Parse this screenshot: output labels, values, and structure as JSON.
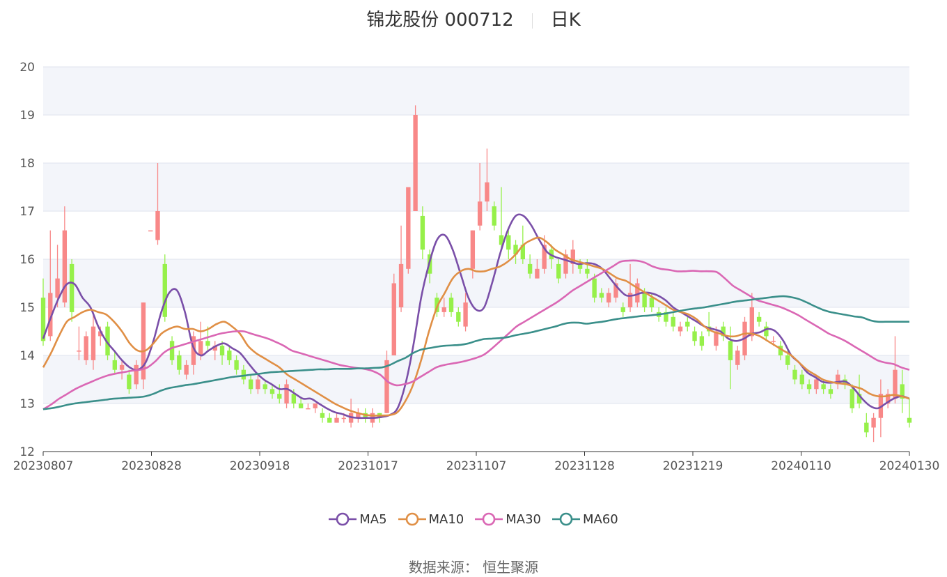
{
  "title": {
    "stock": "锦龙股份 000712",
    "period": "日K"
  },
  "source": "数据来源： 恒生聚源",
  "colors": {
    "up": "#f88888",
    "down": "#96f04a",
    "grid": "#dfe3ee",
    "band": "#f3f5fa",
    "MA5": "#7a4fa8",
    "MA10": "#e08f45",
    "MA30": "#da67b4",
    "MA60": "#3a8f8a"
  },
  "chart_data": {
    "type": "candlestick",
    "ylim": [
      12,
      20
    ],
    "yticks": [
      12,
      13,
      14,
      15,
      16,
      17,
      18,
      19,
      20
    ],
    "xticks": [
      "20230807",
      "20230828",
      "20230918",
      "20231017",
      "20231107",
      "20231128",
      "20231219",
      "20240110",
      "20240130"
    ],
    "legend": [
      "MA5",
      "MA10",
      "MA30",
      "MA60"
    ],
    "candles": [
      {
        "o": 15.2,
        "c": 14.3,
        "h": 15.6,
        "l": 14.2
      },
      {
        "o": 14.4,
        "c": 15.3,
        "h": 16.6,
        "l": 14.3
      },
      {
        "o": 15.2,
        "c": 15.6,
        "h": 16.3,
        "l": 15.0
      },
      {
        "o": 15.1,
        "c": 16.6,
        "h": 17.1,
        "l": 15.0
      },
      {
        "o": 15.9,
        "c": 14.9,
        "h": 16.0,
        "l": 14.7
      },
      {
        "o": 14.1,
        "c": 14.1,
        "h": 14.6,
        "l": 13.9
      },
      {
        "o": 13.9,
        "c": 14.4,
        "h": 14.5,
        "l": 13.8
      },
      {
        "o": 13.9,
        "c": 14.6,
        "h": 14.9,
        "l": 13.7
      },
      {
        "o": 14.4,
        "c": 14.5,
        "h": 14.6,
        "l": 14.2
      },
      {
        "o": 14.6,
        "c": 14.0,
        "h": 14.7,
        "l": 13.9
      },
      {
        "o": 13.9,
        "c": 13.7,
        "h": 14.1,
        "l": 13.6
      },
      {
        "o": 13.7,
        "c": 13.8,
        "h": 13.9,
        "l": 13.5
      },
      {
        "o": 13.6,
        "c": 13.3,
        "h": 13.7,
        "l": 13.2
      },
      {
        "o": 13.4,
        "c": 13.8,
        "h": 13.9,
        "l": 13.3
      },
      {
        "o": 13.5,
        "c": 15.1,
        "h": 15.1,
        "l": 13.3
      },
      {
        "o": 16.6,
        "c": 16.6,
        "h": 16.6,
        "l": 16.6
      },
      {
        "o": 16.4,
        "c": 17.0,
        "h": 18.0,
        "l": 16.3
      },
      {
        "o": 15.9,
        "c": 14.8,
        "h": 16.1,
        "l": 14.7
      },
      {
        "o": 14.3,
        "c": 13.9,
        "h": 14.4,
        "l": 13.8
      },
      {
        "o": 14.0,
        "c": 13.7,
        "h": 14.1,
        "l": 13.6
      },
      {
        "o": 13.6,
        "c": 13.8,
        "h": 13.9,
        "l": 13.5
      },
      {
        "o": 13.8,
        "c": 14.4,
        "h": 14.5,
        "l": 13.6
      },
      {
        "o": 14.0,
        "c": 14.3,
        "h": 14.7,
        "l": 13.9
      },
      {
        "o": 14.3,
        "c": 14.2,
        "h": 14.6,
        "l": 14.1
      },
      {
        "o": 14.1,
        "c": 14.2,
        "h": 14.3,
        "l": 13.9
      },
      {
        "o": 14.2,
        "c": 14.0,
        "h": 14.3,
        "l": 13.8
      },
      {
        "o": 14.1,
        "c": 13.9,
        "h": 14.2,
        "l": 13.8
      },
      {
        "o": 13.9,
        "c": 13.7,
        "h": 14.0,
        "l": 13.6
      },
      {
        "o": 13.7,
        "c": 13.5,
        "h": 13.8,
        "l": 13.4
      },
      {
        "o": 13.5,
        "c": 13.3,
        "h": 13.6,
        "l": 13.2
      },
      {
        "o": 13.3,
        "c": 13.5,
        "h": 13.6,
        "l": 13.2
      },
      {
        "o": 13.4,
        "c": 13.3,
        "h": 13.5,
        "l": 13.2
      },
      {
        "o": 13.3,
        "c": 13.2,
        "h": 13.4,
        "l": 13.1
      },
      {
        "o": 13.2,
        "c": 13.1,
        "h": 13.4,
        "l": 13.0
      },
      {
        "o": 13.0,
        "c": 13.4,
        "h": 13.5,
        "l": 12.9
      },
      {
        "o": 13.2,
        "c": 13.0,
        "h": 13.3,
        "l": 12.9
      },
      {
        "o": 13.0,
        "c": 12.9,
        "h": 13.1,
        "l": 12.9
      },
      {
        "o": 12.9,
        "c": 12.9,
        "h": 13.0,
        "l": 12.9
      },
      {
        "o": 12.9,
        "c": 13.0,
        "h": 13.0,
        "l": 12.8
      },
      {
        "o": 12.8,
        "c": 12.7,
        "h": 12.9,
        "l": 12.6
      },
      {
        "o": 12.7,
        "c": 12.6,
        "h": 12.8,
        "l": 12.6
      },
      {
        "o": 12.6,
        "c": 12.7,
        "h": 12.8,
        "l": 12.6
      },
      {
        "o": 12.7,
        "c": 12.7,
        "h": 12.8,
        "l": 12.6
      },
      {
        "o": 12.6,
        "c": 12.8,
        "h": 13.1,
        "l": 12.5
      },
      {
        "o": 12.7,
        "c": 12.8,
        "h": 12.9,
        "l": 12.6
      },
      {
        "o": 12.8,
        "c": 12.7,
        "h": 12.9,
        "l": 12.6
      },
      {
        "o": 12.6,
        "c": 12.8,
        "h": 12.9,
        "l": 12.5
      },
      {
        "o": 12.8,
        "c": 12.7,
        "h": 12.8,
        "l": 12.6
      },
      {
        "o": 12.8,
        "c": 13.9,
        "h": 14.1,
        "l": 12.8
      },
      {
        "o": 14.0,
        "c": 15.5,
        "h": 15.7,
        "l": 14.0
      },
      {
        "o": 15.0,
        "c": 15.9,
        "h": 16.7,
        "l": 14.9
      },
      {
        "o": 15.8,
        "c": 17.5,
        "h": 17.5,
        "l": 15.7
      },
      {
        "o": 17.0,
        "c": 19.0,
        "h": 19.2,
        "l": 17.0
      },
      {
        "o": 16.9,
        "c": 16.2,
        "h": 17.1,
        "l": 16.0
      },
      {
        "o": 16.1,
        "c": 15.7,
        "h": 16.2,
        "l": 15.5
      },
      {
        "o": 15.2,
        "c": 14.9,
        "h": 15.3,
        "l": 14.8
      },
      {
        "o": 14.9,
        "c": 15.0,
        "h": 15.2,
        "l": 14.8
      },
      {
        "o": 15.2,
        "c": 14.9,
        "h": 15.3,
        "l": 14.8
      },
      {
        "o": 14.9,
        "c": 14.7,
        "h": 15.0,
        "l": 14.6
      },
      {
        "o": 14.6,
        "c": 15.1,
        "h": 15.3,
        "l": 14.5
      },
      {
        "o": 15.8,
        "c": 16.6,
        "h": 16.6,
        "l": 15.6
      },
      {
        "o": 16.7,
        "c": 17.2,
        "h": 18.0,
        "l": 16.6
      },
      {
        "o": 17.2,
        "c": 17.6,
        "h": 18.3,
        "l": 17.0
      },
      {
        "o": 17.1,
        "c": 16.7,
        "h": 17.2,
        "l": 16.6
      },
      {
        "o": 16.5,
        "c": 16.3,
        "h": 17.5,
        "l": 16.2
      },
      {
        "o": 16.5,
        "c": 16.2,
        "h": 16.6,
        "l": 16.0
      },
      {
        "o": 16.3,
        "c": 16.1,
        "h": 16.4,
        "l": 15.9
      },
      {
        "o": 16.3,
        "c": 16.0,
        "h": 16.7,
        "l": 15.9
      },
      {
        "o": 15.9,
        "c": 15.7,
        "h": 16.1,
        "l": 15.6
      },
      {
        "o": 15.6,
        "c": 15.8,
        "h": 16.0,
        "l": 15.6
      },
      {
        "o": 15.8,
        "c": 16.3,
        "h": 16.5,
        "l": 15.7
      },
      {
        "o": 16.2,
        "c": 16.0,
        "h": 16.3,
        "l": 15.8
      },
      {
        "o": 15.9,
        "c": 15.6,
        "h": 16.0,
        "l": 15.5
      },
      {
        "o": 15.7,
        "c": 16.1,
        "h": 16.2,
        "l": 15.6
      },
      {
        "o": 15.9,
        "c": 16.2,
        "h": 16.4,
        "l": 15.7
      },
      {
        "o": 15.9,
        "c": 15.8,
        "h": 16.0,
        "l": 15.7
      },
      {
        "o": 15.8,
        "c": 15.7,
        "h": 16.0,
        "l": 15.6
      },
      {
        "o": 15.6,
        "c": 15.2,
        "h": 15.7,
        "l": 15.1
      },
      {
        "o": 15.3,
        "c": 15.2,
        "h": 15.4,
        "l": 15.1
      },
      {
        "o": 15.1,
        "c": 15.3,
        "h": 15.4,
        "l": 15.0
      },
      {
        "o": 15.2,
        "c": 15.5,
        "h": 15.6,
        "l": 15.1
      },
      {
        "o": 15.0,
        "c": 14.9,
        "h": 15.1,
        "l": 14.8
      },
      {
        "o": 15.0,
        "c": 15.3,
        "h": 15.9,
        "l": 14.9
      },
      {
        "o": 15.1,
        "c": 15.5,
        "h": 15.6,
        "l": 15.0
      },
      {
        "o": 15.3,
        "c": 15.0,
        "h": 15.4,
        "l": 14.9
      },
      {
        "o": 15.2,
        "c": 15.0,
        "h": 15.3,
        "l": 14.9
      },
      {
        "o": 14.9,
        "c": 14.8,
        "h": 15.0,
        "l": 14.7
      },
      {
        "o": 14.9,
        "c": 14.7,
        "h": 15.0,
        "l": 14.6
      },
      {
        "o": 14.8,
        "c": 14.6,
        "h": 14.9,
        "l": 14.5
      },
      {
        "o": 14.5,
        "c": 14.6,
        "h": 14.7,
        "l": 14.4
      },
      {
        "o": 14.7,
        "c": 14.6,
        "h": 14.8,
        "l": 14.5
      },
      {
        "o": 14.5,
        "c": 14.3,
        "h": 14.6,
        "l": 14.2
      },
      {
        "o": 14.4,
        "c": 14.2,
        "h": 14.5,
        "l": 14.1
      },
      {
        "o": 14.6,
        "c": 14.5,
        "h": 14.9,
        "l": 14.4
      },
      {
        "o": 14.2,
        "c": 14.5,
        "h": 14.6,
        "l": 14.1
      },
      {
        "o": 14.6,
        "c": 14.4,
        "h": 14.7,
        "l": 14.3
      },
      {
        "o": 14.3,
        "c": 13.9,
        "h": 14.6,
        "l": 13.3
      },
      {
        "o": 13.8,
        "c": 14.1,
        "h": 14.2,
        "l": 13.7
      },
      {
        "o": 14.0,
        "c": 14.7,
        "h": 14.8,
        "l": 13.9
      },
      {
        "o": 14.4,
        "c": 15.0,
        "h": 15.3,
        "l": 14.3
      },
      {
        "o": 14.8,
        "c": 14.7,
        "h": 14.9,
        "l": 14.6
      },
      {
        "o": 14.6,
        "c": 14.4,
        "h": 14.7,
        "l": 14.3
      },
      {
        "o": 14.3,
        "c": 14.3,
        "h": 14.4,
        "l": 14.2
      },
      {
        "o": 14.2,
        "c": 14.0,
        "h": 14.3,
        "l": 13.9
      },
      {
        "o": 14.0,
        "c": 13.8,
        "h": 14.1,
        "l": 13.7
      },
      {
        "o": 13.7,
        "c": 13.5,
        "h": 13.8,
        "l": 13.4
      },
      {
        "o": 13.6,
        "c": 13.4,
        "h": 13.7,
        "l": 13.3
      },
      {
        "o": 13.4,
        "c": 13.3,
        "h": 13.5,
        "l": 13.2
      },
      {
        "o": 13.3,
        "c": 13.5,
        "h": 13.6,
        "l": 13.2
      },
      {
        "o": 13.4,
        "c": 13.3,
        "h": 13.5,
        "l": 13.2
      },
      {
        "o": 13.3,
        "c": 13.2,
        "h": 13.4,
        "l": 13.1
      },
      {
        "o": 13.4,
        "c": 13.6,
        "h": 13.7,
        "l": 13.3
      },
      {
        "o": 13.5,
        "c": 13.4,
        "h": 13.6,
        "l": 13.3
      },
      {
        "o": 13.3,
        "c": 12.9,
        "h": 13.4,
        "l": 12.8
      },
      {
        "o": 13.2,
        "c": 13.0,
        "h": 13.6,
        "l": 12.9
      },
      {
        "o": 12.6,
        "c": 12.4,
        "h": 12.8,
        "l": 12.3
      },
      {
        "o": 12.5,
        "c": 12.7,
        "h": 12.8,
        "l": 12.2
      },
      {
        "o": 12.7,
        "c": 13.2,
        "h": 13.5,
        "l": 12.3
      },
      {
        "o": 13.0,
        "c": 13.2,
        "h": 13.3,
        "l": 12.9
      },
      {
        "o": 13.1,
        "c": 13.7,
        "h": 14.4,
        "l": 13.0
      },
      {
        "o": 13.4,
        "c": 13.1,
        "h": 13.7,
        "l": 12.8
      },
      {
        "o": 12.7,
        "c": 12.6,
        "h": 13.1,
        "l": 12.5
      }
    ],
    "ma": {
      "MA5": [
        14.35,
        14.8,
        15.2,
        15.48,
        15.48,
        15.2,
        15.0,
        14.6,
        14.3,
        14.1,
        13.9,
        13.75,
        13.7,
        13.85,
        14.3,
        14.9,
        15.3,
        15.35,
        14.9,
        14.2,
        14.0,
        14.1,
        14.2,
        14.25,
        14.15,
        14.05,
        13.85,
        13.65,
        13.5,
        13.4,
        13.3,
        13.3,
        13.2,
        13.1,
        13.1,
        13.0,
        12.9,
        12.82,
        12.78,
        12.72,
        12.7,
        12.7,
        12.7,
        12.72,
        12.76,
        12.9,
        13.4,
        14.2,
        15.2,
        15.9,
        16.4,
        16.5,
        16.2,
        15.7,
        15.2,
        14.95,
        15.0,
        15.5,
        16.1,
        16.6,
        16.9,
        16.9,
        16.7,
        16.4,
        16.15,
        16.05,
        16.0,
        15.95,
        15.9,
        15.92,
        15.9,
        15.8,
        15.6,
        15.4,
        15.25,
        15.25,
        15.3,
        15.3,
        15.25,
        15.15,
        15.0,
        14.9,
        14.8,
        14.7,
        14.6,
        14.55,
        14.5,
        14.35,
        14.3,
        14.35,
        14.45,
        14.48,
        14.55,
        14.5,
        14.3,
        14.0,
        13.85,
        13.65,
        13.55,
        13.45,
        13.43,
        13.45,
        13.45,
        13.3,
        13.1,
        12.95,
        12.9,
        13.0,
        13.1,
        13.15,
        13.1
      ],
      "MA10": [
        13.75,
        14.05,
        14.4,
        14.7,
        14.8,
        14.9,
        14.95,
        14.9,
        14.85,
        14.7,
        14.5,
        14.25,
        14.1,
        14.1,
        14.25,
        14.45,
        14.55,
        14.6,
        14.55,
        14.55,
        14.5,
        14.55,
        14.65,
        14.7,
        14.6,
        14.45,
        14.2,
        14.05,
        13.95,
        13.85,
        13.75,
        13.6,
        13.5,
        13.4,
        13.3,
        13.2,
        13.1,
        13.0,
        12.92,
        12.85,
        12.8,
        12.76,
        12.75,
        12.75,
        12.76,
        12.82,
        13.05,
        13.4,
        13.9,
        14.5,
        15.0,
        15.3,
        15.6,
        15.75,
        15.8,
        15.75,
        15.75,
        15.8,
        15.85,
        15.95,
        16.1,
        16.3,
        16.4,
        16.45,
        16.35,
        16.2,
        16.1,
        16.0,
        15.95,
        15.9,
        15.85,
        15.8,
        15.7,
        15.6,
        15.55,
        15.45,
        15.35,
        15.25,
        15.15,
        15.05,
        14.95,
        14.9,
        14.85,
        14.75,
        14.6,
        14.5,
        14.45,
        14.4,
        14.4,
        14.45,
        14.45,
        14.4,
        14.3,
        14.2,
        14.1,
        14.0,
        13.85,
        13.7,
        13.6,
        13.5,
        13.45,
        13.42,
        13.4,
        13.35,
        13.3,
        13.2,
        13.15,
        13.15,
        13.18,
        13.15,
        13.1
      ],
      "MA30": [
        12.88,
        12.98,
        13.1,
        13.2,
        13.3,
        13.38,
        13.45,
        13.52,
        13.58,
        13.62,
        13.65,
        13.68,
        13.7,
        13.75,
        13.88,
        14.05,
        14.15,
        14.2,
        14.25,
        14.3,
        14.35,
        14.4,
        14.45,
        14.48,
        14.5,
        14.5,
        14.45,
        14.4,
        14.35,
        14.28,
        14.2,
        14.1,
        14.05,
        14.0,
        13.95,
        13.9,
        13.85,
        13.8,
        13.77,
        13.74,
        13.72,
        13.68,
        13.6,
        13.45,
        13.38,
        13.4,
        13.45,
        13.55,
        13.65,
        13.75,
        13.8,
        13.83,
        13.86,
        13.9,
        13.95,
        14.02,
        14.15,
        14.3,
        14.45,
        14.6,
        14.7,
        14.8,
        14.9,
        15.0,
        15.1,
        15.22,
        15.35,
        15.45,
        15.55,
        15.65,
        15.75,
        15.85,
        15.95,
        15.97,
        15.97,
        15.93,
        15.85,
        15.8,
        15.78,
        15.75,
        15.75,
        15.76,
        15.75,
        15.75,
        15.73,
        15.6,
        15.45,
        15.35,
        15.25,
        15.15,
        15.1,
        15.05,
        15.0,
        14.93,
        14.85,
        14.75,
        14.65,
        14.55,
        14.45,
        14.38,
        14.3,
        14.2,
        14.1,
        14.0,
        13.9,
        13.85,
        13.82,
        13.75,
        13.7
      ],
      "MA60": [
        12.88,
        12.9,
        12.93,
        12.97,
        13.0,
        13.02,
        13.04,
        13.06,
        13.08,
        13.1,
        13.11,
        13.12,
        13.13,
        13.15,
        13.2,
        13.27,
        13.32,
        13.35,
        13.38,
        13.4,
        13.43,
        13.46,
        13.49,
        13.52,
        13.55,
        13.57,
        13.59,
        13.61,
        13.63,
        13.65,
        13.66,
        13.67,
        13.68,
        13.69,
        13.7,
        13.71,
        13.71,
        13.72,
        13.72,
        13.72,
        13.73,
        13.73,
        13.74,
        13.75,
        13.8,
        13.88,
        13.95,
        14.05,
        14.12,
        14.15,
        14.18,
        14.2,
        14.21,
        14.22,
        14.25,
        14.3,
        14.34,
        14.35,
        14.36,
        14.38,
        14.42,
        14.45,
        14.48,
        14.52,
        14.56,
        14.6,
        14.65,
        14.68,
        14.68,
        14.66,
        14.68,
        14.7,
        14.73,
        14.76,
        14.78,
        14.8,
        14.82,
        14.83,
        14.85,
        14.87,
        14.9,
        14.93,
        14.96,
        14.98,
        15.0,
        15.03,
        15.06,
        15.09,
        15.12,
        15.14,
        15.16,
        15.18,
        15.2,
        15.22,
        15.23,
        15.21,
        15.17,
        15.1,
        15.02,
        14.95,
        14.9,
        14.87,
        14.84,
        14.81,
        14.79,
        14.73,
        14.7,
        14.7,
        14.7,
        14.7,
        14.7
      ]
    }
  }
}
